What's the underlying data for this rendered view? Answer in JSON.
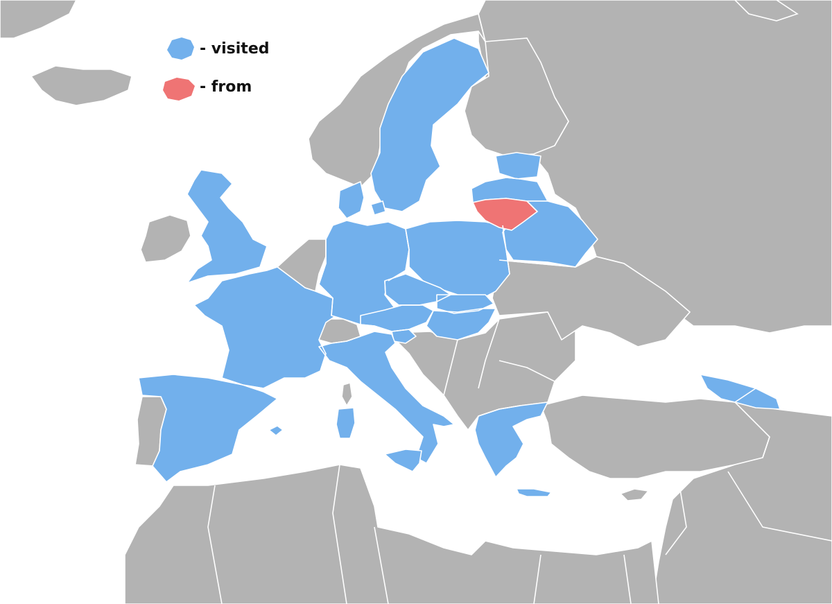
{
  "colors": {
    "sea": "#ffffff",
    "land": "#b3b3b3",
    "visited": "#72b0ec",
    "from": "#ef7474",
    "border": "#ffffff"
  },
  "legend": {
    "visited_label": "- visited",
    "from_label": "- from"
  },
  "map": {
    "visited_countries": [
      "United Kingdom",
      "France",
      "Spain",
      "Sweden",
      "Denmark",
      "Germany",
      "Poland",
      "Czechia",
      "Austria",
      "Slovakia",
      "Hungary",
      "Italy",
      "Greece",
      "Latvia",
      "Estonia",
      "Belarus",
      "Georgia",
      "Slovenia"
    ],
    "from_country": "Lithuania"
  }
}
